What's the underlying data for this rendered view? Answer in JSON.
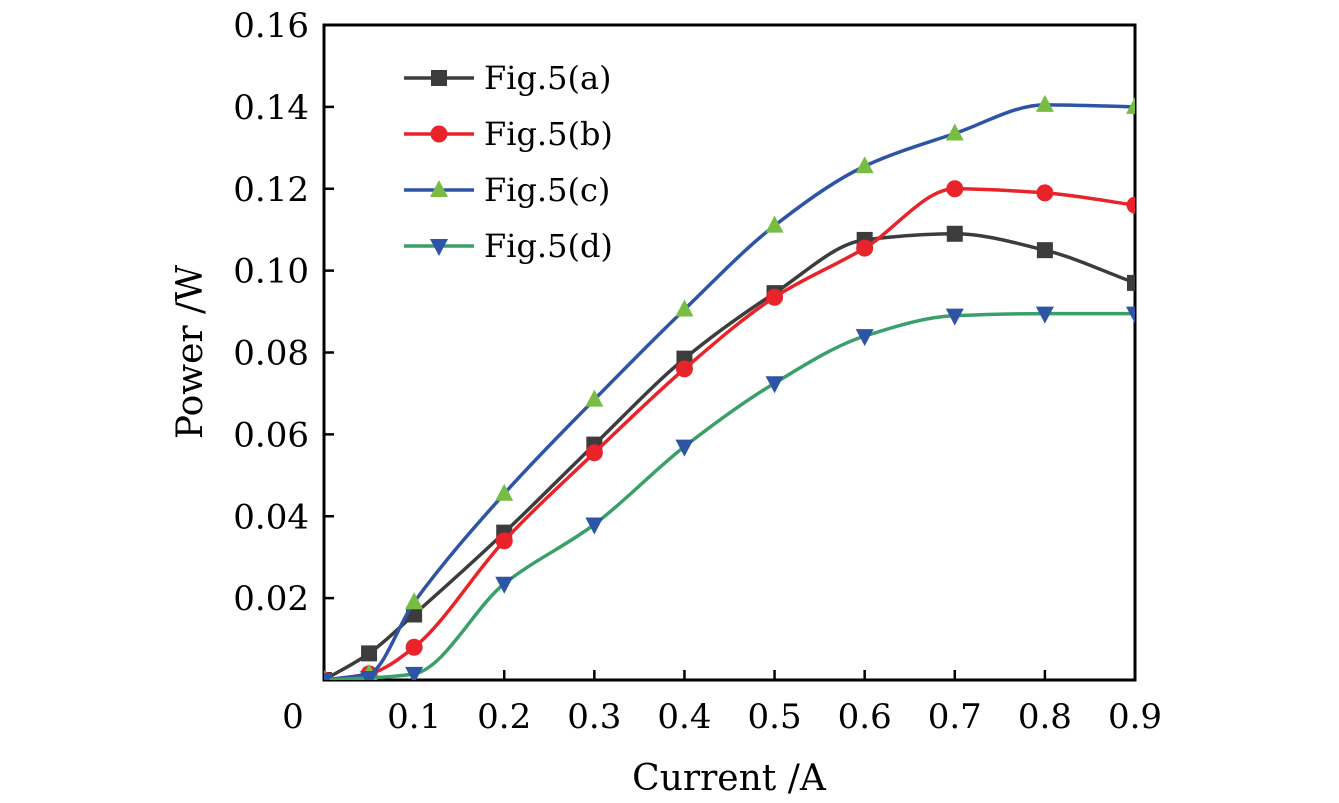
{
  "chart_data": {
    "type": "line",
    "title": "",
    "xlabel": "Current /A",
    "ylabel": "Power /W",
    "xlim": [
      0,
      0.9
    ],
    "ylim": [
      0,
      0.16
    ],
    "grid": false,
    "legend_position": "top-left",
    "x_ticks": [
      {
        "value": 0,
        "label": "0"
      },
      {
        "value": 0.1,
        "label": "0.1"
      },
      {
        "value": 0.2,
        "label": "0.2"
      },
      {
        "value": 0.3,
        "label": "0.3"
      },
      {
        "value": 0.4,
        "label": "0.4"
      },
      {
        "value": 0.5,
        "label": "0.5"
      },
      {
        "value": 0.6,
        "label": "0.6"
      },
      {
        "value": 0.7,
        "label": "0.7"
      },
      {
        "value": 0.8,
        "label": "0.8"
      },
      {
        "value": 0.9,
        "label": "0.9"
      }
    ],
    "y_ticks": [
      {
        "value": 0.02,
        "label": "0.02"
      },
      {
        "value": 0.04,
        "label": "0.04"
      },
      {
        "value": 0.06,
        "label": "0.06"
      },
      {
        "value": 0.08,
        "label": "0.08"
      },
      {
        "value": 0.1,
        "label": "0.10"
      },
      {
        "value": 0.12,
        "label": "0.12"
      },
      {
        "value": 0.14,
        "label": "0.14"
      },
      {
        "value": 0.16,
        "label": "0.16"
      }
    ],
    "series": [
      {
        "name": "Fig.5(a)",
        "color": "#3c3c3c",
        "marker": "square",
        "x": [
          0,
          0.05,
          0.1,
          0.2,
          0.3,
          0.4,
          0.5,
          0.6,
          0.7,
          0.8,
          0.9
        ],
        "values": [
          0.0,
          0.0065,
          0.016,
          0.036,
          0.0575,
          0.0785,
          0.0945,
          0.1075,
          0.109,
          0.105,
          0.097
        ]
      },
      {
        "name": "Fig.5(b)",
        "color": "#e8232a",
        "marker": "circle",
        "x": [
          0,
          0.05,
          0.1,
          0.2,
          0.3,
          0.4,
          0.5,
          0.6,
          0.7,
          0.8,
          0.9
        ],
        "values": [
          0.0,
          0.0015,
          0.008,
          0.034,
          0.0555,
          0.076,
          0.0935,
          0.1055,
          0.12,
          0.119,
          0.116
        ]
      },
      {
        "name": "Fig.5(c)",
        "color": "#2e55a5",
        "marker": "triangle-up",
        "markerColor": "#77bd43",
        "x": [
          0,
          0.05,
          0.1,
          0.2,
          0.3,
          0.4,
          0.5,
          0.6,
          0.7,
          0.8,
          0.9
        ],
        "values": [
          0.0,
          0.0015,
          0.019,
          0.0455,
          0.0685,
          0.0905,
          0.111,
          0.1255,
          0.1335,
          0.1405,
          0.14
        ]
      },
      {
        "name": "Fig.5(d)",
        "color": "#3aa06a",
        "marker": "triangle-down",
        "markerColor": "#2e55a5",
        "x": [
          0,
          0.05,
          0.1,
          0.2,
          0.3,
          0.4,
          0.5,
          0.6,
          0.7,
          0.8,
          0.9
        ],
        "values": [
          0.0,
          0.0005,
          0.0015,
          0.0235,
          0.038,
          0.057,
          0.0725,
          0.084,
          0.089,
          0.0895,
          0.0895
        ]
      }
    ]
  }
}
